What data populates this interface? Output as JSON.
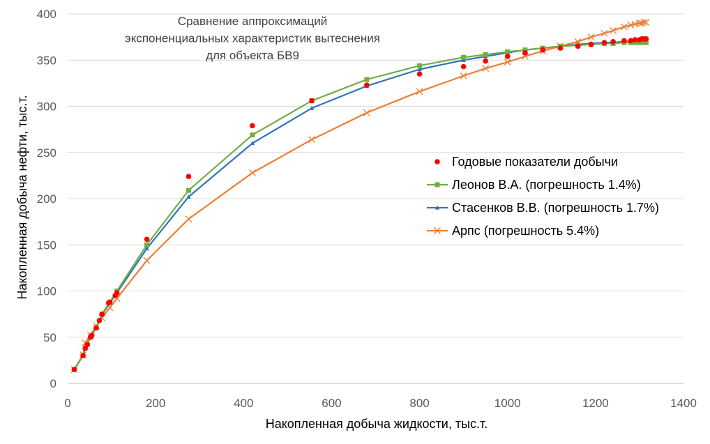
{
  "chart_data": {
    "type": "scatter",
    "title_lines": [
      "Сравнение аппроксимаций",
      "экспоненциальных характеристик вытеснения",
      "для объекта БВ9"
    ],
    "xlabel": "Накопленная добыча жидкости, тыс.т.",
    "ylabel": "Накопленная добыча нефти, тыс.т.",
    "xlim": [
      0,
      1400
    ],
    "ylim": [
      0,
      400
    ],
    "xticks": [
      "0",
      "200",
      "400",
      "600",
      "800",
      "1000",
      "1200",
      "1400"
    ],
    "yticks": [
      "0",
      "50",
      "100",
      "150",
      "200",
      "250",
      "300",
      "350",
      "400"
    ],
    "grid": "horizontal",
    "legend_position": "right",
    "series": [
      {
        "name": "Годовые показатели добычи",
        "color": "#ff0000",
        "marker": "circle",
        "line": false,
        "x": [
          15,
          35,
          40,
          45,
          52,
          55,
          65,
          72,
          78,
          93,
          96,
          108,
          112,
          180,
          275,
          420,
          555,
          680,
          800,
          900,
          950,
          1000,
          1040,
          1080,
          1120,
          1160,
          1190,
          1220,
          1240,
          1265,
          1280,
          1290,
          1300,
          1305,
          1310,
          1315
        ],
        "y": [
          15,
          30,
          38,
          42,
          50,
          52,
          60,
          68,
          75,
          87,
          88,
          95,
          98,
          156,
          224,
          279,
          306,
          323,
          335,
          343,
          349,
          354,
          358,
          361,
          363,
          365,
          367,
          369,
          370,
          371,
          371,
          372,
          372,
          373,
          373,
          373
        ]
      },
      {
        "name": "Леонов В.А. (погрешность  1.4%)",
        "color": "#70ad47",
        "marker": "square",
        "line": true,
        "x": [
          15,
          35,
          40,
          52,
          65,
          78,
          96,
          112,
          180,
          275,
          420,
          555,
          680,
          800,
          900,
          950,
          1000,
          1040,
          1080,
          1120,
          1160,
          1190,
          1220,
          1240,
          1265,
          1280,
          1290,
          1300,
          1305,
          1310,
          1315
        ],
        "y": [
          15,
          30,
          38,
          50,
          60,
          75,
          88,
          100,
          150,
          209,
          269,
          306,
          329,
          344,
          353,
          356,
          359,
          361,
          363,
          365,
          366,
          367,
          368,
          368,
          369,
          369,
          369,
          369,
          369,
          369,
          369
        ]
      },
      {
        "name": "Стасенков В.В. (погрешность  1.7%)",
        "color": "#2e75b6",
        "marker": "triangle",
        "line": true,
        "x": [
          15,
          35,
          40,
          52,
          65,
          78,
          96,
          112,
          180,
          275,
          420,
          555,
          680,
          800,
          900,
          950,
          1000,
          1040,
          1080,
          1120,
          1160,
          1190,
          1220,
          1240,
          1265,
          1280,
          1290,
          1300,
          1305,
          1310,
          1315
        ],
        "y": [
          15,
          30,
          38,
          50,
          60,
          74,
          87,
          98,
          146,
          202,
          260,
          298,
          322,
          340,
          350,
          354,
          358,
          361,
          363,
          365,
          367,
          368,
          369,
          369,
          370,
          370,
          370,
          370,
          370,
          370,
          370
        ]
      },
      {
        "name": "Арпс (погрешность  5.4%)",
        "color": "#ed7d31",
        "marker": "x",
        "line": true,
        "x": [
          15,
          35,
          40,
          52,
          65,
          78,
          96,
          112,
          180,
          275,
          420,
          555,
          680,
          800,
          900,
          950,
          1000,
          1040,
          1080,
          1120,
          1160,
          1190,
          1220,
          1240,
          1265,
          1280,
          1290,
          1300,
          1305,
          1310,
          1315
        ],
        "y": [
          15,
          31,
          44,
          52,
          62,
          71,
          82,
          92,
          133,
          178,
          228,
          264,
          293,
          316,
          333,
          341,
          348,
          354,
          360,
          365,
          370,
          375,
          379,
          382,
          386,
          388,
          389,
          390,
          390,
          391,
          391
        ]
      }
    ]
  }
}
